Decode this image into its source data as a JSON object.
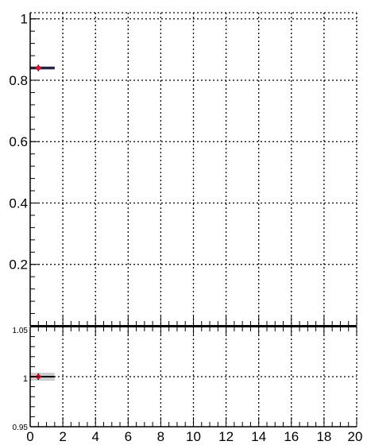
{
  "chart_data": [
    {
      "type": "scatter",
      "panel": "main",
      "xlim": [
        0,
        20
      ],
      "ylim": [
        0,
        1.02
      ],
      "grid": true,
      "y_ticks": [
        0.2,
        0.4,
        0.6,
        0.8,
        1
      ],
      "y_tick_labels": [
        "0.2",
        "0.4",
        "0.6",
        "0.8",
        "1"
      ],
      "series": [
        {
          "marker_color": "#e8102a",
          "points": [
            {
              "x": 0.5,
              "y": 0.84,
              "x_low": 0,
              "x_high": 1.5,
              "y_err": 0.005
            }
          ]
        }
      ]
    },
    {
      "type": "scatter",
      "panel": "ratio",
      "xlim": [
        0,
        20
      ],
      "ylim": [
        0.95,
        1.05
      ],
      "grid": true,
      "x_ticks": [
        0,
        2,
        4,
        6,
        8,
        10,
        12,
        14,
        16,
        18,
        20
      ],
      "x_tick_labels": [
        "0",
        "2",
        "4",
        "6",
        "8",
        "10",
        "12",
        "14",
        "16",
        "18",
        "20"
      ],
      "y_ticks": [
        0.95,
        1,
        1.05
      ],
      "y_tick_labels": [
        "0.95",
        "1",
        "1.05"
      ],
      "series": [
        {
          "marker_color": "#e8102a",
          "band_color": "#cccccc",
          "points": [
            {
              "x": 0.5,
              "y": 1.0,
              "x_low": 0,
              "x_high": 1.5,
              "band_low": 0.996,
              "band_high": 1.004
            }
          ]
        }
      ]
    }
  ]
}
